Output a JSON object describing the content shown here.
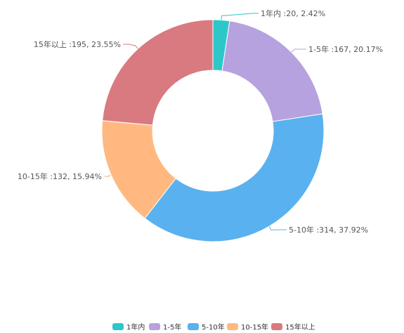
{
  "chart_data": {
    "type": "pie",
    "variant": "donut",
    "slices": [
      {
        "name": "1年内",
        "value": 20,
        "percent": "2.42%",
        "label": "1年内 :20,  2.42%",
        "color": "#2ec7c9"
      },
      {
        "name": "1-5年",
        "value": 167,
        "percent": "20.17%",
        "label": "1-5年 :167,  20.17%",
        "color": "#b6a2de"
      },
      {
        "name": "5-10年",
        "value": 314,
        "percent": "37.92%",
        "label": "5-10年 :314,  37.92%",
        "color": "#5ab1ef"
      },
      {
        "name": "10-15年",
        "value": 132,
        "percent": "15.94%",
        "label": "10-15年 :132,  15.94%",
        "color": "#ffb980"
      },
      {
        "name": "15年以上",
        "value": 195,
        "percent": "23.55%",
        "label": "15年以上 :195,  23.55%",
        "color": "#d87a80"
      }
    ],
    "legend_position": "bottom-center"
  }
}
